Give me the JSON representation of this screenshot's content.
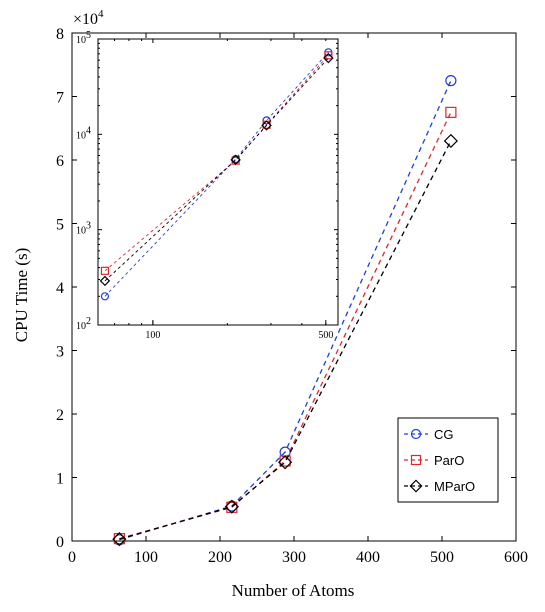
{
  "chart_data": {
    "type": "line",
    "xlabel": "Number of Atoms",
    "ylabel": "CPU Time (s)",
    "y_multiplier_label": "×10",
    "y_multiplier_exp": "4",
    "xlim": [
      0,
      600
    ],
    "ylim": [
      0,
      80000
    ],
    "x_ticks": [
      0,
      100,
      200,
      300,
      400,
      500,
      600
    ],
    "y_ticks": [
      0,
      10000,
      20000,
      30000,
      40000,
      50000,
      60000,
      70000,
      80000
    ],
    "y_tick_labels": [
      "0",
      "1",
      "2",
      "3",
      "4",
      "5",
      "6",
      "7",
      "8"
    ],
    "legend_position": "bottom-right",
    "x": [
      64,
      216,
      288,
      512
    ],
    "series": [
      {
        "name": "CG",
        "color": "#1f3fdc",
        "marker": "circle",
        "values": [
          200,
          5500,
          14000,
          72500
        ]
      },
      {
        "name": "ParO",
        "color": "#e0262b",
        "marker": "square",
        "values": [
          370,
          5300,
          12600,
          67500
        ]
      },
      {
        "name": "MParO",
        "color": "#000000",
        "marker": "diamond",
        "values": [
          290,
          5400,
          12400,
          63000
        ]
      }
    ],
    "inset": {
      "scale": "log",
      "xlim": [
        60,
        560
      ],
      "ylim": [
        100,
        100000
      ],
      "x_tick_labels": [
        "100",
        "500"
      ],
      "x_ticks": [
        100,
        500
      ],
      "y_ticks": [
        100,
        1000,
        10000,
        100000
      ],
      "y_tick_base": "10",
      "y_tick_exps": [
        "2",
        "3",
        "4",
        "5"
      ]
    }
  }
}
